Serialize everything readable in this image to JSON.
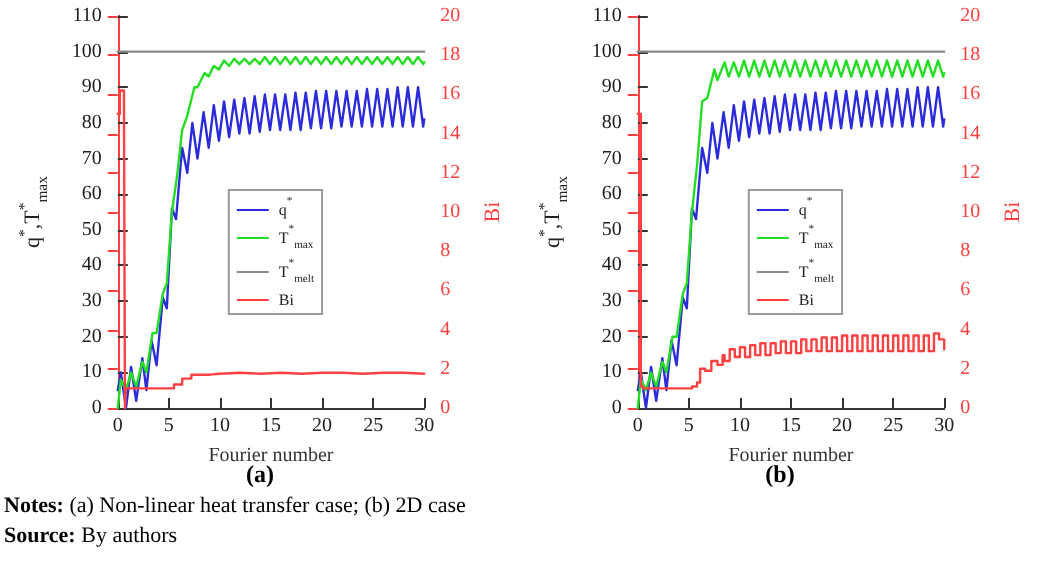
{
  "chart_data": [
    {
      "type": "line",
      "title": "(a)",
      "xlabel": "Fourier number",
      "ylabel": "q$^{*}$,T$^{*}$$_{max}$",
      "y2label": "Bi",
      "xlim": [
        0,
        30
      ],
      "xticks": [
        0,
        5,
        10,
        15,
        20,
        25,
        30
      ],
      "ylim": [
        0,
        110
      ],
      "yticks": [
        0,
        10,
        20,
        30,
        40,
        50,
        60,
        70,
        80,
        90,
        100,
        110
      ],
      "y2lim": [
        0,
        20
      ],
      "y2ticks": [
        0,
        2,
        4,
        6,
        8,
        10,
        12,
        14,
        16,
        18,
        20
      ],
      "grid": false,
      "legend": "center",
      "marker": "none",
      "annotations": [
        "Notes: (a) Non-linear heat transfer case; (b) 2D case",
        "Source: By authors"
      ],
      "series": [
        {
          "name": "q$^{*}$",
          "color": "#2b2bdc",
          "x": [
            0,
            0.3,
            0.8,
            1.3,
            1.8,
            2.4,
            2.8,
            3.3,
            3.8,
            4.4,
            4.8,
            5.3,
            5.7,
            6.3,
            6.8,
            7.3,
            7.8,
            8.4,
            8.9,
            9.4,
            9.9,
            10.4,
            10.9,
            11.4,
            11.9,
            12.4,
            12.9,
            13.4,
            13.9,
            14.4,
            14.9,
            15.4,
            15.9,
            16.4,
            16.9,
            17.4,
            17.9,
            18.4,
            18.9,
            19.4,
            19.9,
            20.4,
            20.9,
            21.4,
            21.9,
            22.4,
            22.9,
            23.4,
            23.9,
            24.4,
            24.9,
            25.4,
            25.9,
            26.4,
            26.9,
            27.4,
            27.9,
            28.4,
            28.9,
            29.4,
            29.9,
            30
          ],
          "values": [
            5,
            10,
            0,
            11.5,
            2,
            14,
            5,
            19,
            12,
            31,
            28,
            56,
            53,
            73,
            66,
            80,
            70,
            83,
            73,
            85,
            75,
            86,
            76,
            86.5,
            77,
            87,
            77,
            87.5,
            77.5,
            88,
            78,
            88,
            78,
            88,
            78,
            88.5,
            78,
            88.5,
            78.5,
            89,
            78.5,
            89,
            78.5,
            89,
            79,
            89,
            79,
            89,
            79,
            89.5,
            79,
            89.5,
            79,
            89.5,
            79,
            90,
            79,
            90,
            79,
            90,
            79,
            81
          ]
        },
        {
          "name": "T$^{*}$$_{max}$",
          "color": "#22dd22",
          "x": [
            0,
            0.3,
            0.8,
            1.3,
            1.8,
            2.4,
            2.8,
            3.4,
            3.8,
            4.4,
            4.8,
            5.3,
            5.8,
            6.3,
            6.8,
            7.5,
            7.8,
            8.5,
            8.9,
            9.4,
            9.9,
            10.4,
            10.9,
            11.4,
            11.9,
            12.4,
            12.9,
            13.4,
            13.9,
            14.4,
            14.9,
            15.4,
            15.9,
            16.4,
            16.9,
            17.4,
            17.9,
            18.4,
            18.9,
            19.4,
            19.9,
            20.4,
            20.9,
            21.4,
            21.9,
            22.4,
            22.9,
            23.4,
            23.9,
            24.4,
            24.9,
            25.4,
            25.9,
            26.4,
            26.9,
            27.4,
            27.9,
            28.4,
            28.9,
            29.4,
            29.9,
            30
          ],
          "values": [
            0,
            8,
            5,
            10,
            6,
            13,
            10,
            21,
            21,
            32,
            35,
            55,
            65,
            78,
            82,
            90,
            90,
            94,
            93,
            96,
            95,
            97.5,
            96,
            98,
            96.5,
            98,
            96.5,
            98,
            96.5,
            98.5,
            96.5,
            98.5,
            96.5,
            98.5,
            96.5,
            98.5,
            96.5,
            98.5,
            96.5,
            98.5,
            96.5,
            98.5,
            96.5,
            98.5,
            96.5,
            98.5,
            96.5,
            98.5,
            96.5,
            98.5,
            96.5,
            98.5,
            96.5,
            98.5,
            96.5,
            98.5,
            96.5,
            98.5,
            96.5,
            98.5,
            96.5,
            97
          ]
        },
        {
          "name": "T$^{*}$$_{melt}$",
          "color": "#888888",
          "x": [
            0,
            30
          ],
          "values": [
            100,
            100
          ]
        },
        {
          "name": "Bi",
          "color": "#ff4040",
          "type": "step",
          "axis": "y2",
          "x": [
            0,
            0.2,
            0.6,
            0.7,
            0.8,
            5.2,
            5.5,
            6.0,
            6.3,
            6.8,
            7.2,
            8,
            9,
            10,
            12,
            14,
            16,
            18,
            20,
            22,
            24,
            26,
            28,
            30
          ],
          "values": [
            15,
            16.2,
            16.2,
            0,
            1,
            1,
            1.2,
            1.2,
            1.5,
            1.5,
            1.7,
            1.7,
            1.75,
            1.8,
            1.75,
            1.8,
            1.75,
            1.8,
            1.8,
            1.75,
            1.8,
            1.8,
            1.75,
            1.75
          ]
        }
      ]
    },
    {
      "type": "line",
      "title": "(b)",
      "xlabel": "Fourier number",
      "ylabel": "q$^{*}$,T$^{*}$$_{max}$",
      "y2label": "Bi",
      "xlim": [
        0,
        30
      ],
      "xticks": [
        0,
        5,
        10,
        15,
        20,
        25,
        30
      ],
      "ylim": [
        0,
        110
      ],
      "yticks": [
        0,
        10,
        20,
        30,
        40,
        50,
        60,
        70,
        80,
        90,
        100,
        110
      ],
      "y2lim": [
        0,
        20
      ],
      "y2ticks": [
        0,
        2,
        4,
        6,
        8,
        10,
        12,
        14,
        16,
        18,
        20
      ],
      "grid": false,
      "legend": "center",
      "marker": "none",
      "series": [
        {
          "name": "q$^{*}$",
          "color": "#2b2bdc",
          "x": [
            0,
            0.3,
            0.8,
            1.3,
            1.8,
            2.4,
            2.8,
            3.3,
            3.8,
            4.4,
            4.8,
            5.3,
            5.7,
            6.3,
            6.8,
            7.3,
            7.8,
            8.4,
            8.9,
            9.4,
            9.9,
            10.4,
            10.9,
            11.4,
            11.9,
            12.4,
            12.9,
            13.4,
            13.9,
            14.4,
            14.9,
            15.4,
            15.9,
            16.4,
            16.9,
            17.4,
            17.9,
            18.4,
            18.9,
            19.4,
            19.9,
            20.4,
            20.9,
            21.4,
            21.9,
            22.4,
            22.9,
            23.4,
            23.9,
            24.4,
            24.9,
            25.4,
            25.9,
            26.4,
            26.9,
            27.4,
            27.9,
            28.4,
            28.9,
            29.4,
            29.9,
            30
          ],
          "values": [
            5,
            10,
            0,
            11.5,
            2,
            14,
            5,
            19,
            12,
            31,
            28,
            56,
            53,
            73,
            66,
            80,
            70,
            83,
            73,
            85,
            75,
            86,
            76,
            86.5,
            77,
            87,
            77,
            87.5,
            77.5,
            88,
            78,
            88,
            78,
            88,
            78,
            88.5,
            78,
            88.5,
            78.5,
            89,
            78.5,
            89,
            78.5,
            89,
            79,
            89,
            79,
            89,
            79,
            89.5,
            79,
            89.5,
            79,
            89.5,
            79,
            90,
            79,
            90,
            79,
            90,
            79,
            81
          ]
        },
        {
          "name": "T$^{*}$$_{max}$",
          "color": "#22dd22",
          "x": [
            0,
            0.3,
            0.8,
            1.3,
            1.8,
            2.4,
            2.8,
            3.4,
            3.8,
            4.4,
            4.8,
            5.3,
            5.8,
            6.3,
            6.8,
            7.5,
            7.8,
            8.5,
            8.9,
            9.4,
            9.9,
            10.4,
            10.9,
            11.4,
            11.9,
            12.4,
            12.9,
            13.4,
            13.9,
            14.4,
            14.9,
            15.4,
            15.9,
            16.4,
            16.9,
            17.4,
            17.9,
            18.4,
            18.9,
            19.4,
            19.9,
            20.4,
            20.9,
            21.4,
            21.9,
            22.4,
            22.9,
            23.4,
            23.9,
            24.4,
            24.9,
            25.4,
            25.9,
            26.4,
            26.9,
            27.4,
            27.9,
            28.4,
            28.9,
            29.4,
            29.9,
            30
          ],
          "values": [
            0,
            8,
            5,
            10,
            6,
            13,
            10,
            20,
            20,
            32,
            35,
            55,
            68,
            86,
            87,
            95,
            92,
            97,
            93,
            97,
            93,
            97.5,
            93,
            97.5,
            93,
            97.5,
            93,
            97.5,
            93,
            97.5,
            93,
            97.5,
            93,
            97.5,
            93,
            97.5,
            93,
            97.5,
            93,
            97.5,
            93,
            97.5,
            93,
            97.5,
            93,
            97.5,
            93,
            97.5,
            93,
            97.5,
            93,
            97.5,
            93,
            97.5,
            93,
            97.5,
            93,
            97.5,
            93,
            97.5,
            93,
            94
          ]
        },
        {
          "name": "T$^{*}$$_{melt}$",
          "color": "#888888",
          "x": [
            0,
            30
          ],
          "values": [
            100,
            100
          ]
        },
        {
          "name": "Bi",
          "color": "#ff4040",
          "type": "step",
          "axis": "y2",
          "x": [
            0,
            0.3,
            0.5,
            5.3,
            5.8,
            6.1,
            6.6,
            7.2,
            7.8,
            8.3,
            8.5,
            9,
            9.5,
            10,
            10.5,
            11,
            11.5,
            12,
            12.5,
            13,
            13.5,
            14,
            14.5,
            15,
            15.5,
            16,
            16.5,
            17,
            17.5,
            18,
            18.5,
            19,
            19.5,
            20,
            20.5,
            21,
            21.5,
            22,
            22.5,
            23,
            23.5,
            24,
            24.5,
            25,
            25.5,
            26,
            26.5,
            27,
            27.5,
            28,
            28.5,
            29,
            29.5,
            30
          ],
          "values": [
            15,
            1.1,
            1,
            1.1,
            1.3,
            2,
            1.9,
            2.4,
            2.2,
            2.7,
            2.4,
            3.0,
            2.6,
            3.1,
            2.6,
            3.2,
            2.7,
            3.3,
            2.7,
            3.3,
            2.8,
            3.4,
            2.8,
            3.4,
            2.8,
            3.5,
            2.9,
            3.5,
            2.9,
            3.6,
            2.9,
            3.6,
            2.9,
            3.7,
            2.9,
            3.7,
            2.9,
            3.7,
            2.9,
            3.7,
            2.9,
            3.7,
            2.9,
            3.7,
            2.9,
            3.7,
            2.9,
            3.7,
            2.9,
            3.7,
            2.9,
            3.8,
            3.5,
            3.0
          ]
        }
      ]
    }
  ]
}
